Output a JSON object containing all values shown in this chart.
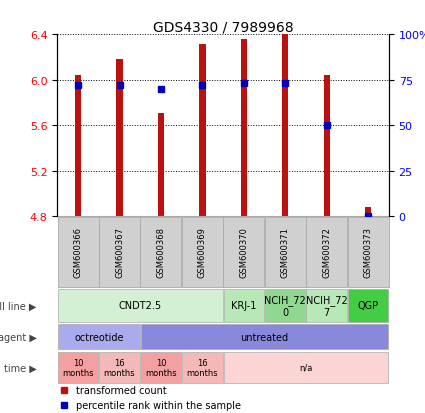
{
  "title": "GDS4330 / 7989968",
  "samples": [
    "GSM600366",
    "GSM600367",
    "GSM600368",
    "GSM600369",
    "GSM600370",
    "GSM600371",
    "GSM600372",
    "GSM600373"
  ],
  "bar_values": [
    6.04,
    6.18,
    5.71,
    6.31,
    6.36,
    6.4,
    6.04,
    4.88
  ],
  "percentile_values": [
    72,
    72,
    70,
    72,
    73,
    73,
    50,
    0
  ],
  "ylim_left": [
    4.8,
    6.4
  ],
  "ylim_right": [
    0,
    100
  ],
  "yticks_left": [
    4.8,
    5.2,
    5.6,
    6.0,
    6.4
  ],
  "yticks_right": [
    0,
    25,
    50,
    75,
    100
  ],
  "ytick_labels_right": [
    "0",
    "25",
    "50",
    "75",
    "100%"
  ],
  "bar_color": "#bb1111",
  "dot_color": "#0000bb",
  "bar_width": 0.15,
  "cell_line_data": [
    {
      "label": "CNDT2.5",
      "start": 0,
      "end": 4,
      "color": "#d4f0d4"
    },
    {
      "label": "KRJ-1",
      "start": 4,
      "end": 5,
      "color": "#b8e8b8"
    },
    {
      "label": "NCIH_72\n0",
      "start": 5,
      "end": 6,
      "color": "#90d890"
    },
    {
      "label": "NCIH_72\n7",
      "start": 6,
      "end": 7,
      "color": "#b8e8b8"
    },
    {
      "label": "QGP",
      "start": 7,
      "end": 8,
      "color": "#44cc44"
    }
  ],
  "agent_data": [
    {
      "label": "octreotide",
      "start": 0,
      "end": 2,
      "color": "#aaaaee"
    },
    {
      "label": "untreated",
      "start": 2,
      "end": 8,
      "color": "#8888dd"
    }
  ],
  "time_data": [
    {
      "label": "10\nmonths",
      "start": 0,
      "end": 1,
      "color": "#f4a0a0"
    },
    {
      "label": "16\nmonths",
      "start": 1,
      "end": 2,
      "color": "#f4b8b8"
    },
    {
      "label": "10\nmonths",
      "start": 2,
      "end": 3,
      "color": "#f4a0a0"
    },
    {
      "label": "16\nmonths",
      "start": 3,
      "end": 4,
      "color": "#f4b8b8"
    },
    {
      "label": "n/a",
      "start": 4,
      "end": 8,
      "color": "#fcd4d4"
    }
  ],
  "legend_items": [
    {
      "label": "transformed count",
      "color": "#bb1111"
    },
    {
      "label": "percentile rank within the sample",
      "color": "#0000bb"
    }
  ],
  "gsm_row_color": "#d0d0d0",
  "label_row_bg": "#ffffff",
  "left_label_color": "#444444",
  "row_label_fontsize": 7.5,
  "tick_fontsize": 8,
  "bar_label_fontsize": 7,
  "legend_fontsize": 7
}
